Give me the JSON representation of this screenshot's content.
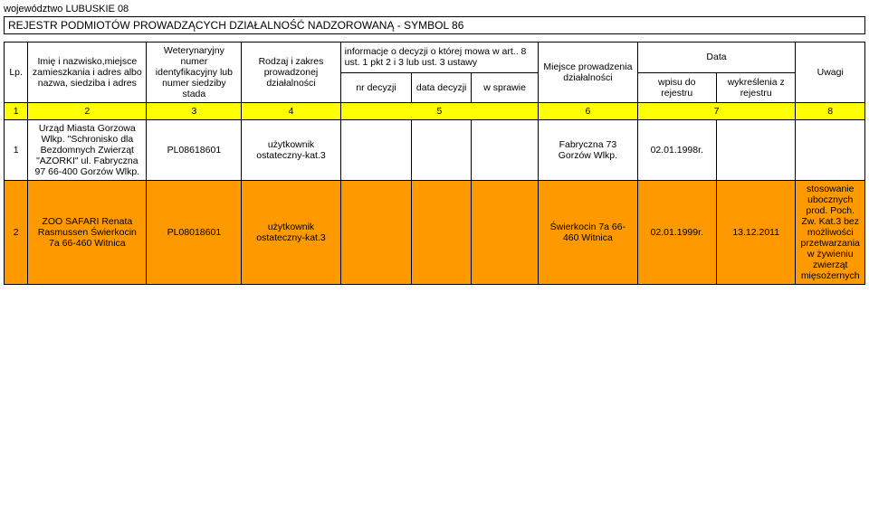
{
  "province": "województwo LUBUSKIE 08",
  "title": "REJESTR PODMIOTÓW PROWADZĄCYCH DZIAŁALNOŚĆ NADZOROWANĄ -  SYMBOL 86",
  "header": {
    "lp": "Lp.",
    "name": "Imię i nazwisko,miejsce zamieszkania i adres albo nazwa, siedziba i adres",
    "vetnum": "Weterynaryjny numer identyfikacyjny lub numer siedziby stada",
    "scope": "Rodzaj i zakres prowadzonej działalności",
    "info": "informacje o decyzji o której mowa w art.. 8 ust. 1 pkt 2 i 3 lub ust. 3 ustawy",
    "nr_decyzji": "nr decyzji",
    "data_decyzji": "data decyzji",
    "w_sprawie": "w sprawie",
    "miejsce": "Miejsce prowadzenia działalności",
    "data": "Data",
    "wpisu": "wpisu do rejestru",
    "wykresl": "wykreślenia z rejestru",
    "uwagi": "Uwagi"
  },
  "colnums": {
    "c1": "1",
    "c2": "2",
    "c3": "3",
    "c4": "4",
    "c5": "5",
    "c6": "6",
    "c7": "7",
    "c8": "8"
  },
  "row1": {
    "lp": "1",
    "name": "Urząd Miasta Gorzowa Wlkp. \"Schronisko dla Bezdomnych Zwierząt \"AZORKI\" ul. Fabryczna 97 66-400 Gorzów Wlkp.",
    "vetnum": "PL08618601",
    "scope": "użytkownik ostateczny-kat.3",
    "nr_decyzji": "",
    "data_decyzji": "",
    "w_sprawie": "",
    "miejsce": "Fabryczna 73 Gorzów Wlkp.",
    "wpisu": "02.01.1998r.",
    "wykresl": "",
    "uwagi": ""
  },
  "row2": {
    "lp": "2",
    "name": "ZOO SAFARI Renata Rasmussen Świerkocin 7a 66-460 Witnica",
    "vetnum": "PL08018601",
    "scope": "użytkownik ostateczny-kat.3",
    "nr_decyzji": "",
    "data_decyzji": "",
    "w_sprawie": "",
    "miejsce": "Świerkocin 7a 66-460 Witnica",
    "wpisu": "02.01.1999r.",
    "wykresl": "13.12.2011",
    "uwagi": "stosowanie ubocznych prod. Poch. Zw. Kat.3 bez możliwości przetwarzania w żywieniu zwierząt mięsożernych"
  },
  "colwidths": {
    "c1": "24px",
    "c2": "120px",
    "c3": "96px",
    "c4": "100px",
    "c5a": "72px",
    "c5b": "60px",
    "c5c": "68px",
    "c6": "100px",
    "c7a": "80px",
    "c7b": "80px",
    "c8": "70px"
  },
  "colors": {
    "yellow": "#ffff00",
    "orange": "#ff9900"
  }
}
